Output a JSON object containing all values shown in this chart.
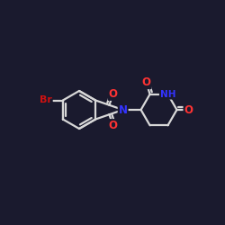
{
  "background_color": "#1a1a2e",
  "bond_color": "#d8d8d8",
  "atom_colors": {
    "O": "#ff3333",
    "N": "#3333ff",
    "Br": "#cc1111",
    "C": "#d8d8d8"
  },
  "bond_width": 1.6,
  "font_size_atom": 8.5,
  "fig_bg": "#1a1a2e"
}
